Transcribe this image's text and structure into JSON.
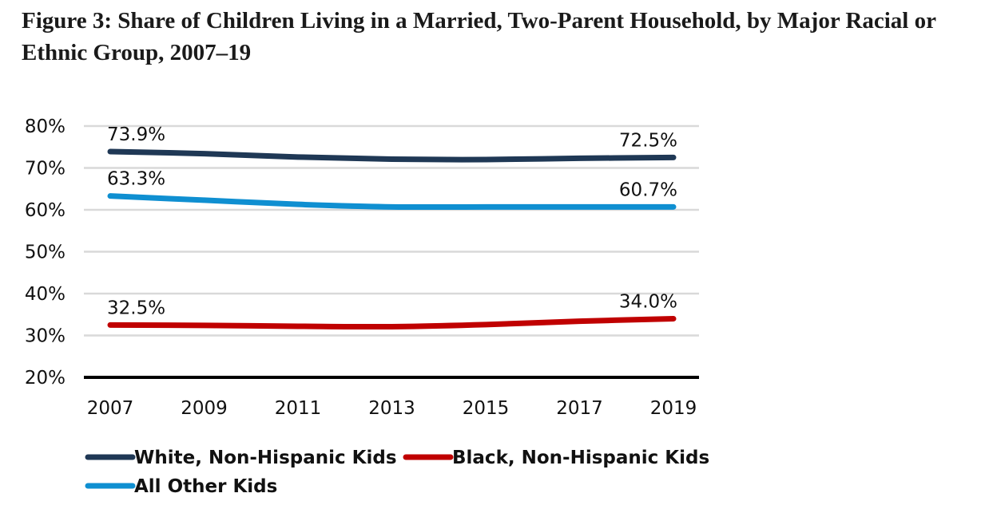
{
  "title": "Figure 3: Share of Children Living in a Married, Two-Parent Household, by Major Racial or Ethnic Group, 2007–19",
  "chart_data": {
    "type": "line",
    "title": "Figure 3: Share of Children Living in a Married, Two-Parent Household, by Major Racial or Ethnic Group, 2007–19",
    "xlabel": "",
    "ylabel": "",
    "x": [
      2007,
      2009,
      2011,
      2013,
      2015,
      2017,
      2019
    ],
    "x_tick_labels": [
      "2007",
      "2009",
      "2011",
      "2013",
      "2015",
      "2017",
      "2019"
    ],
    "ylim": [
      20,
      80
    ],
    "y_ticks": [
      20,
      30,
      40,
      50,
      60,
      70,
      80
    ],
    "y_tick_labels": [
      "20%",
      "30%",
      "40%",
      "50%",
      "60%",
      "70%",
      "80%"
    ],
    "grid": true,
    "legend_position": "bottom",
    "series": [
      {
        "name": "White, Non-Hispanic Kids",
        "color": "#1f3855",
        "values": [
          73.9,
          73.4,
          72.6,
          72.1,
          72.0,
          72.3,
          72.5
        ],
        "labels": [
          {
            "index": 0,
            "text": "73.9%"
          },
          {
            "index": 6,
            "text": "72.5%"
          }
        ]
      },
      {
        "name": "Black, Non-Hispanic Kids",
        "color": "#c00000",
        "values": [
          32.5,
          32.4,
          32.2,
          32.1,
          32.6,
          33.4,
          34.0
        ],
        "labels": [
          {
            "index": 0,
            "text": "32.5%"
          },
          {
            "index": 6,
            "text": "34.0%"
          }
        ]
      },
      {
        "name": "All Other Kids",
        "color": "#0f8fd1",
        "values": [
          63.3,
          62.3,
          61.3,
          60.7,
          60.7,
          60.7,
          60.7
        ],
        "labels": [
          {
            "index": 0,
            "text": "63.3%"
          },
          {
            "index": 6,
            "text": "60.7%"
          }
        ]
      }
    ]
  }
}
